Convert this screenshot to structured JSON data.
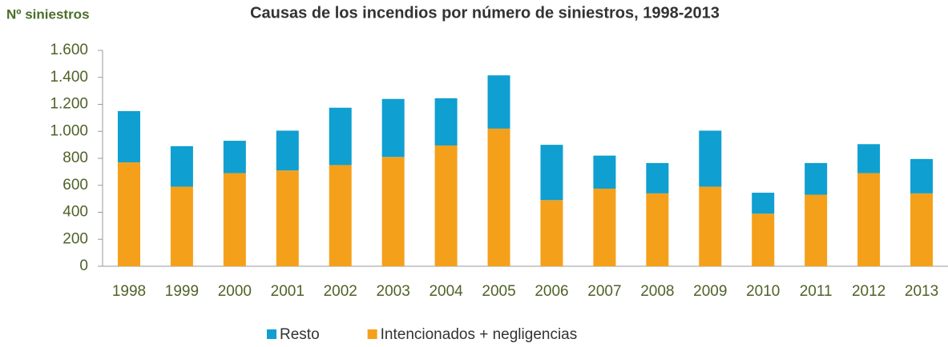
{
  "chart_data": {
    "type": "stacked_bar",
    "title": "Causas de los incendios por número de siniestros, 1998-2013",
    "y_label": "Nº siniestros",
    "categories": [
      "1998",
      "1999",
      "2000",
      "2001",
      "2002",
      "2003",
      "2004",
      "2005",
      "2006",
      "2007",
      "2008",
      "2009",
      "2010",
      "2011",
      "2012",
      "2013"
    ],
    "series": [
      {
        "name": "Resto",
        "color": "#0f9fd0",
        "values": [
          380,
          300,
          240,
          295,
          425,
          430,
          350,
          395,
          410,
          245,
          225,
          415,
          155,
          235,
          215,
          255
        ]
      },
      {
        "name": "Intencionados + negligencias",
        "color": "#f5a01a",
        "values": [
          770,
          590,
          690,
          710,
          750,
          810,
          895,
          1020,
          490,
          575,
          540,
          590,
          390,
          530,
          690,
          540
        ]
      }
    ],
    "ylim": [
      0,
      1600
    ],
    "yticks": [
      0,
      200,
      400,
      600,
      800,
      {
        "value": 1000,
        "label": "1.000"
      },
      {
        "value": 1200,
        "label": "1.200"
      },
      {
        "value": 1400,
        "label": "1.400"
      },
      {
        "value": 1600,
        "label": "1.600"
      }
    ],
    "grid": false,
    "legend": "bottom"
  }
}
